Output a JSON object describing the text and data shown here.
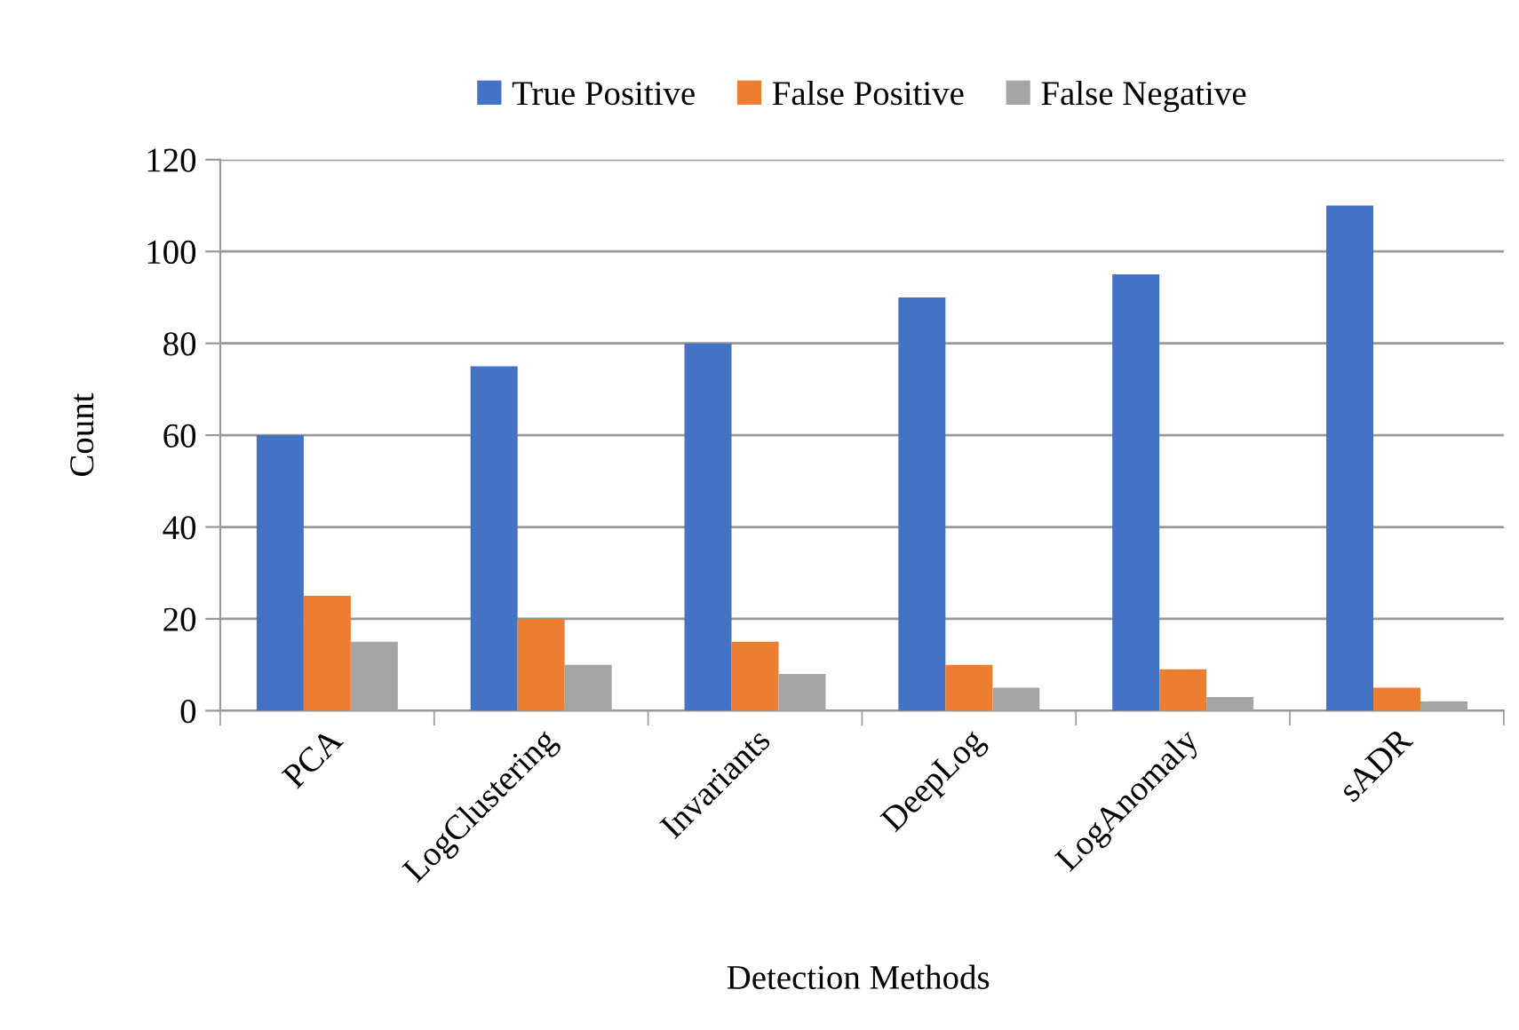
{
  "chart_data": {
    "type": "bar",
    "xlabel": "Detection Methods",
    "ylabel": "Count",
    "categories": [
      "PCA",
      "LogClustering",
      "Invariants",
      "DeepLog",
      "LogAnomaly",
      "sADR"
    ],
    "series": [
      {
        "name": "True Positive",
        "color": "#4472c4",
        "values": [
          60,
          75,
          80,
          90,
          95,
          110
        ]
      },
      {
        "name": "False Positive",
        "color": "#ed7d31",
        "values": [
          25,
          20,
          15,
          10,
          9,
          5
        ]
      },
      {
        "name": "False Negative",
        "color": "#a5a5a5",
        "values": [
          15,
          10,
          8,
          5,
          3,
          2
        ]
      }
    ],
    "ylim": [
      0,
      120
    ],
    "yticks": [
      0,
      20,
      40,
      60,
      80,
      100,
      120
    ],
    "grid": "y",
    "legend": "top"
  }
}
